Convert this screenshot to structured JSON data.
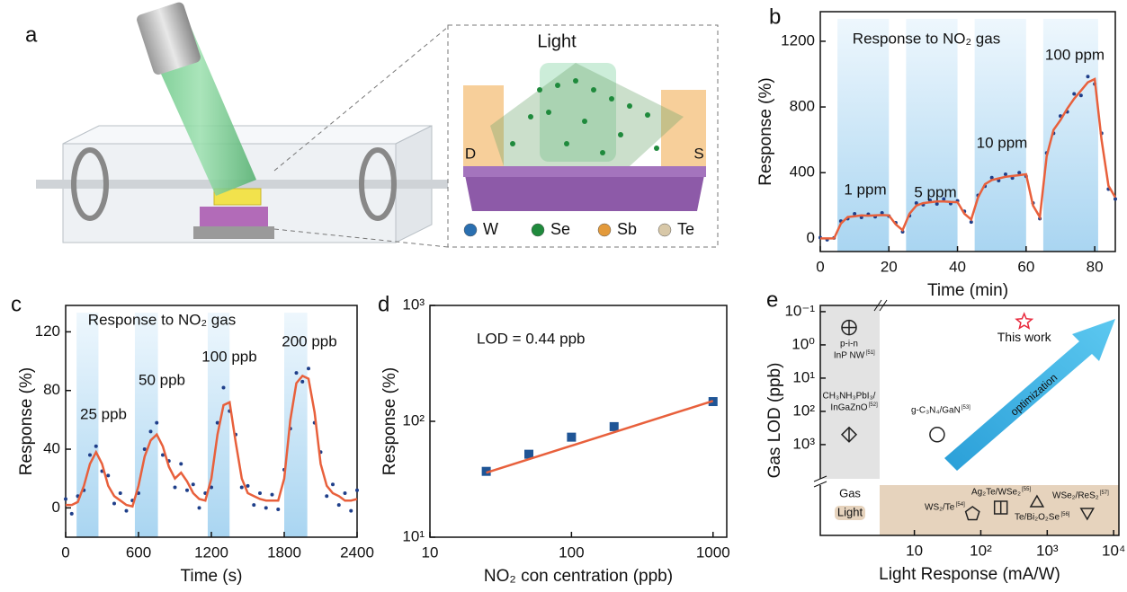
{
  "panel_labels": [
    "a",
    "b",
    "c",
    "d",
    "e"
  ],
  "illustration": {
    "light": "Light",
    "electrodes": [
      "D",
      "S"
    ],
    "legend": [
      {
        "name": "W",
        "color": "#2a6fb0"
      },
      {
        "name": "Se",
        "color": "#1f8a3c"
      },
      {
        "name": "Sb",
        "color": "#e39a3b"
      },
      {
        "name": "Te",
        "color": "#d8c8a8"
      }
    ]
  },
  "chart_data": [
    {
      "type": "line",
      "title": "Response to NO₂ gas",
      "xlabel": "Time (min)",
      "ylabel": "Response (%)",
      "xlim": [
        0,
        86
      ],
      "xticks": [
        0,
        20,
        40,
        60,
        80
      ],
      "ylim": [
        -80,
        1380
      ],
      "yticks": [
        0,
        400,
        800,
        1200
      ],
      "x": [
        0,
        2,
        4,
        6,
        8,
        10,
        12,
        14,
        16,
        18,
        20,
        22,
        24,
        26,
        28,
        30,
        32,
        34,
        36,
        38,
        40,
        42,
        44,
        46,
        48,
        50,
        52,
        54,
        56,
        58,
        60,
        62,
        64,
        66,
        68,
        70,
        72,
        74,
        76,
        78,
        80,
        82,
        84,
        86
      ],
      "series": [
        {
          "color": "#1f3f8a",
          "style": "dots",
          "values": [
            5,
            -8,
            3,
            105,
            120,
            150,
            128,
            147,
            132,
            155,
            136,
            95,
            40,
            138,
            215,
            205,
            232,
            210,
            240,
            212,
            228,
            165,
            100,
            262,
            318,
            370,
            352,
            390,
            368,
            400,
            378,
            215,
            120,
            520,
            640,
            745,
            770,
            880,
            870,
            985,
            940,
            640,
            300,
            240
          ]
        },
        {
          "color": "#e8603c",
          "style": "line",
          "values": [
            0,
            0,
            0,
            90,
            130,
            135,
            140,
            138,
            140,
            142,
            140,
            85,
            50,
            150,
            200,
            215,
            220,
            225,
            225,
            222,
            220,
            150,
            115,
            250,
            330,
            355,
            365,
            375,
            380,
            385,
            390,
            200,
            130,
            500,
            660,
            720,
            790,
            850,
            900,
            950,
            970,
            600,
            320,
            250
          ]
        }
      ],
      "shaded": [
        [
          5,
          20
        ],
        [
          25,
          40
        ],
        [
          45,
          60
        ],
        [
          65,
          81
        ]
      ],
      "annotations": [
        "1 ppm",
        "5 ppm",
        "10 ppm",
        "100 ppm"
      ]
    },
    {
      "type": "line",
      "title": "Response to NO₂ gas",
      "xlabel": "Time (s)",
      "ylabel": "Response (%)",
      "xlim": [
        0,
        2400
      ],
      "xticks": [
        0,
        600,
        1200,
        1800,
        2400
      ],
      "ylim": [
        -20,
        138
      ],
      "yticks": [
        0,
        40,
        80,
        120
      ],
      "x": [
        0,
        50,
        100,
        150,
        200,
        250,
        300,
        350,
        400,
        450,
        500,
        550,
        600,
        650,
        700,
        750,
        800,
        850,
        900,
        950,
        1000,
        1050,
        1100,
        1150,
        1200,
        1250,
        1300,
        1350,
        1400,
        1450,
        1500,
        1550,
        1600,
        1650,
        1700,
        1750,
        1800,
        1850,
        1900,
        1950,
        2000,
        2050,
        2100,
        2150,
        2200,
        2250,
        2300,
        2350,
        2400
      ],
      "series": [
        {
          "color": "#1f3f8a",
          "style": "dots",
          "values": [
            6,
            -4,
            8,
            12,
            36,
            42,
            25,
            22,
            3,
            10,
            -2,
            5,
            10,
            40,
            52,
            58,
            36,
            32,
            14,
            30,
            12,
            16,
            0,
            10,
            14,
            58,
            82,
            66,
            50,
            14,
            15,
            2,
            10,
            0,
            9,
            -1,
            26,
            54,
            92,
            86,
            95,
            58,
            38,
            8,
            16,
            2,
            10,
            -2,
            12
          ]
        },
        {
          "color": "#e8603c",
          "style": "line",
          "values": [
            2,
            2,
            4,
            15,
            30,
            38,
            30,
            15,
            8,
            5,
            2,
            1,
            15,
            35,
            46,
            50,
            42,
            28,
            20,
            24,
            18,
            10,
            6,
            5,
            20,
            50,
            70,
            72,
            45,
            20,
            10,
            8,
            6,
            5,
            5,
            5,
            20,
            60,
            85,
            90,
            88,
            65,
            30,
            15,
            10,
            8,
            5,
            5,
            6
          ]
        }
      ],
      "shaded": [
        [
          90,
          270
        ],
        [
          570,
          760
        ],
        [
          1170,
          1350
        ],
        [
          1800,
          1990
        ]
      ],
      "annotations": [
        "25 ppb",
        "50 ppb",
        "100 ppb",
        "200 ppb"
      ]
    },
    {
      "type": "scatter",
      "xlabel": "NO₂ con centration (ppb)",
      "ylabel": "Response (%)",
      "xscale": "log",
      "yscale": "log",
      "xlim": [
        10,
        1250
      ],
      "xticks": [
        10,
        100,
        1000
      ],
      "ylim": [
        10,
        1000
      ],
      "yticks": [
        {
          "value": 10,
          "label": "10¹"
        },
        {
          "value": 100,
          "label": "10²"
        },
        {
          "value": 1000,
          "label": "10³"
        }
      ],
      "series": [
        {
          "color": "#1f5596",
          "style": "squares",
          "x": [
            25,
            50,
            100,
            200,
            1000
          ],
          "values": [
            37,
            52,
            73,
            90,
            148
          ]
        },
        {
          "color": "#e8603c",
          "style": "line",
          "x": [
            25,
            1000
          ],
          "values": [
            36,
            150
          ]
        }
      ],
      "annotations": [
        "LOD = 0.44 ppb"
      ]
    },
    {
      "type": "scatter",
      "xlabel": "Light Response (mA/W)",
      "ylabel": "Gas LOD (ppb)",
      "xscale": "log",
      "yscale": "log",
      "y_inverted": true,
      "xlim": [
        3,
        12000
      ],
      "xticks": [
        10,
        {
          "value": 100,
          "label": "10²"
        },
        {
          "value": 1000,
          "label": "10³"
        },
        {
          "value": 10000,
          "label": "10⁴"
        }
      ],
      "ylim": [
        0.065,
        10700
      ],
      "yticks": [
        {
          "value": 0.1,
          "label": "10⁻¹"
        },
        {
          "value": 1,
          "label": "10⁰"
        },
        {
          "value": 10,
          "label": "10¹"
        },
        {
          "value": 100,
          "label": "10²"
        },
        {
          "value": 1000,
          "label": "10³"
        }
      ],
      "region_labels": [
        "Gas",
        "Light"
      ],
      "annotations": [
        "optimization"
      ],
      "points": [
        {
          "label": [
            "p-i-n",
            "InP NW"
          ],
          "ref": "[51]",
          "marker": "circle-cross",
          "color": "#222222",
          "x": null,
          "y": 0.3
        },
        {
          "label": [
            "CH₃NH₃PbI₃/",
            "InGaZnO"
          ],
          "ref": "[52]",
          "marker": "diamond-split",
          "color": "#222222",
          "x": null,
          "y": 500
        },
        {
          "label": [
            "g-C₃N₄/GaN"
          ],
          "ref": "[53]",
          "marker": "circle",
          "color": "#222222",
          "x": 22,
          "y": 500
        },
        {
          "label": [
            "This work"
          ],
          "ref": null,
          "marker": "star",
          "color": "#e8283c",
          "x": 450,
          "y": 0.2
        },
        {
          "label": [
            "WS₂/Te"
          ],
          "ref": "[54]",
          "marker": "pentagon",
          "color": "#222222",
          "x": 75,
          "y": null
        },
        {
          "label": [
            "Ag₂Te/WSe₂"
          ],
          "ref": "[55]",
          "marker": "square-split",
          "color": "#222222",
          "x": 200,
          "y": null
        },
        {
          "label": [
            "Te/Bi₂O₂Se"
          ],
          "ref": "[56]",
          "marker": "triangle",
          "color": "#222222",
          "x": 700,
          "y": null
        },
        {
          "label": [
            "WSe₂/ReS₂"
          ],
          "ref": "[57]",
          "marker": "triangle-down",
          "color": "#222222",
          "x": 4000,
          "y": null
        }
      ]
    }
  ]
}
